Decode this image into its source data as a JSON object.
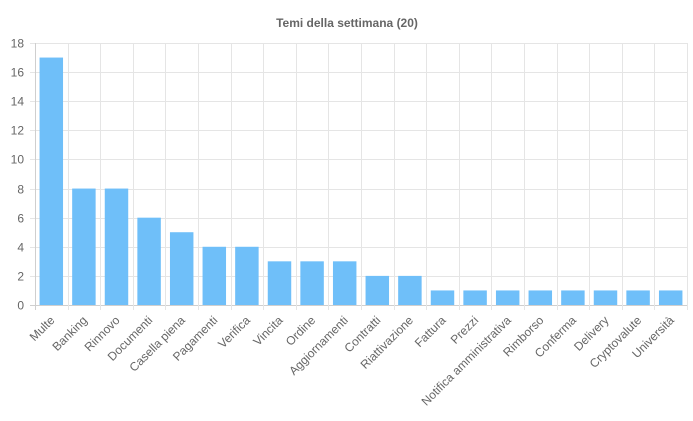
{
  "chart_data": {
    "type": "bar",
    "title": "Temi della settimana (20)",
    "xlabel": "",
    "ylabel": "",
    "categories": [
      "Multe",
      "Banking",
      "Rinnovo",
      "Documenti",
      "Casella piena",
      "Pagamenti",
      "Verifica",
      "Vincita",
      "Ordine",
      "Aggiornamenti",
      "Contratti",
      "Riattivazione",
      "Fattura",
      "Prezzi",
      "Notifica amministrativa",
      "Rimborso",
      "Conferma",
      "Delivery",
      "Cryptovalute",
      "Università"
    ],
    "values": [
      17,
      8,
      8,
      6,
      5,
      4,
      4,
      3,
      3,
      3,
      2,
      2,
      1,
      1,
      1,
      1,
      1,
      1,
      1,
      1
    ],
    "ylim": [
      0,
      18
    ],
    "yticks": [
      0,
      2,
      4,
      6,
      8,
      10,
      12,
      14,
      16,
      18
    ],
    "grid": true,
    "legend": "none",
    "colors": {
      "bar_fill": "#6fbff9",
      "bar_stroke": "#36a2eb",
      "grid": "#e5e5e5",
      "text": "#666666"
    }
  }
}
